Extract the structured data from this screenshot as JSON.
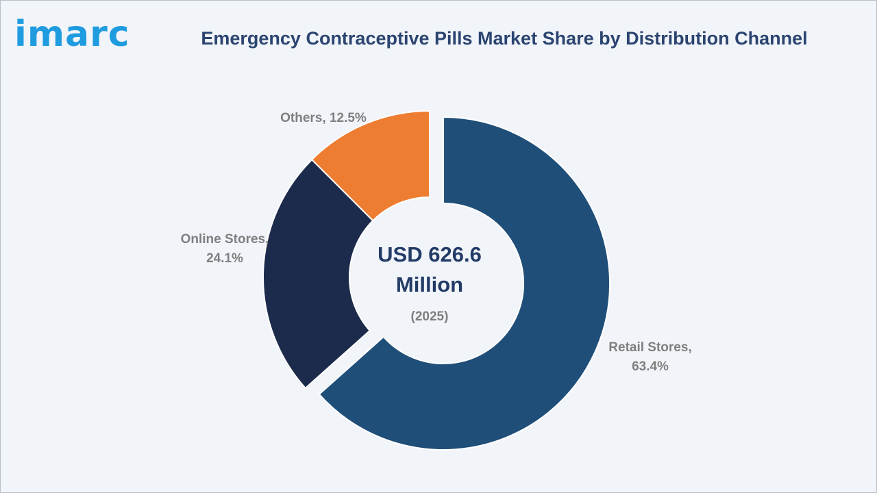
{
  "brand": {
    "logo_text": "imarc",
    "color": "#1f9be0"
  },
  "title": "Emergency Contraceptive Pills Market Share by Distribution Channel",
  "chart_data": {
    "type": "pie",
    "variant": "donut",
    "title": "Emergency Contraceptive Pills Market Share by Distribution Channel",
    "center_label": {
      "line1": "USD 626.6",
      "line2": "Million",
      "line3": "(2025)"
    },
    "slices": [
      {
        "name": "Retail Stores",
        "value": 63.4,
        "label_line1": "Retail Stores,",
        "label_line2": "63.4%",
        "color": "#1f4e79",
        "exploded": true
      },
      {
        "name": "Online Stores",
        "value": 24.1,
        "label_line1": "Online Stores,",
        "label_line2": "24.1%",
        "color": "#1c2b4b",
        "exploded": false
      },
      {
        "name": "Others",
        "value": 12.5,
        "label_line1": "Others, 12.5%",
        "label_line2": "",
        "color": "#ed7d31",
        "exploded": false
      }
    ]
  }
}
